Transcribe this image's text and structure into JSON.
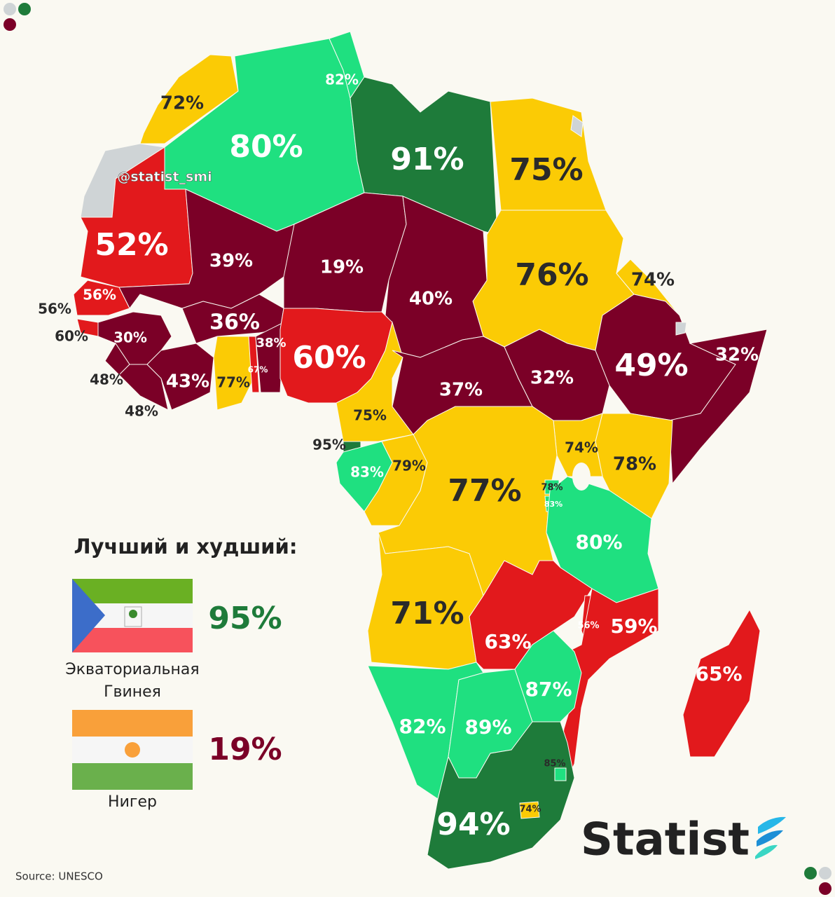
{
  "header": {
    "handle": "@statist_smi"
  },
  "map": {
    "labels": [
      "72%",
      "82%",
      "80%",
      "91%",
      "75%",
      "52%",
      "39%",
      "19%",
      "40%",
      "76%",
      "74%",
      "56%",
      "56%",
      "60%",
      "30%",
      "36%",
      "38%",
      "60%",
      "49%",
      "32%",
      "48%",
      "43%",
      "77%",
      "67%",
      "48%",
      "37%",
      "32%",
      "75%",
      "95%",
      "83%",
      "79%",
      "74%",
      "78%",
      "77%",
      "78%",
      "83%",
      "80%",
      "71%",
      "63%",
      "56%",
      "59%",
      "65%",
      "87%",
      "82%",
      "89%",
      "85%",
      "94%",
      "74%"
    ]
  },
  "legend": {
    "title": "Лучший и худший:",
    "best": {
      "value": "95%",
      "country": "Экваториальная Гвинея"
    },
    "worst": {
      "value": "19%",
      "country": "Нигер"
    }
  },
  "footer": {
    "source": "Source: UNESCO",
    "brand": "Statist"
  }
}
